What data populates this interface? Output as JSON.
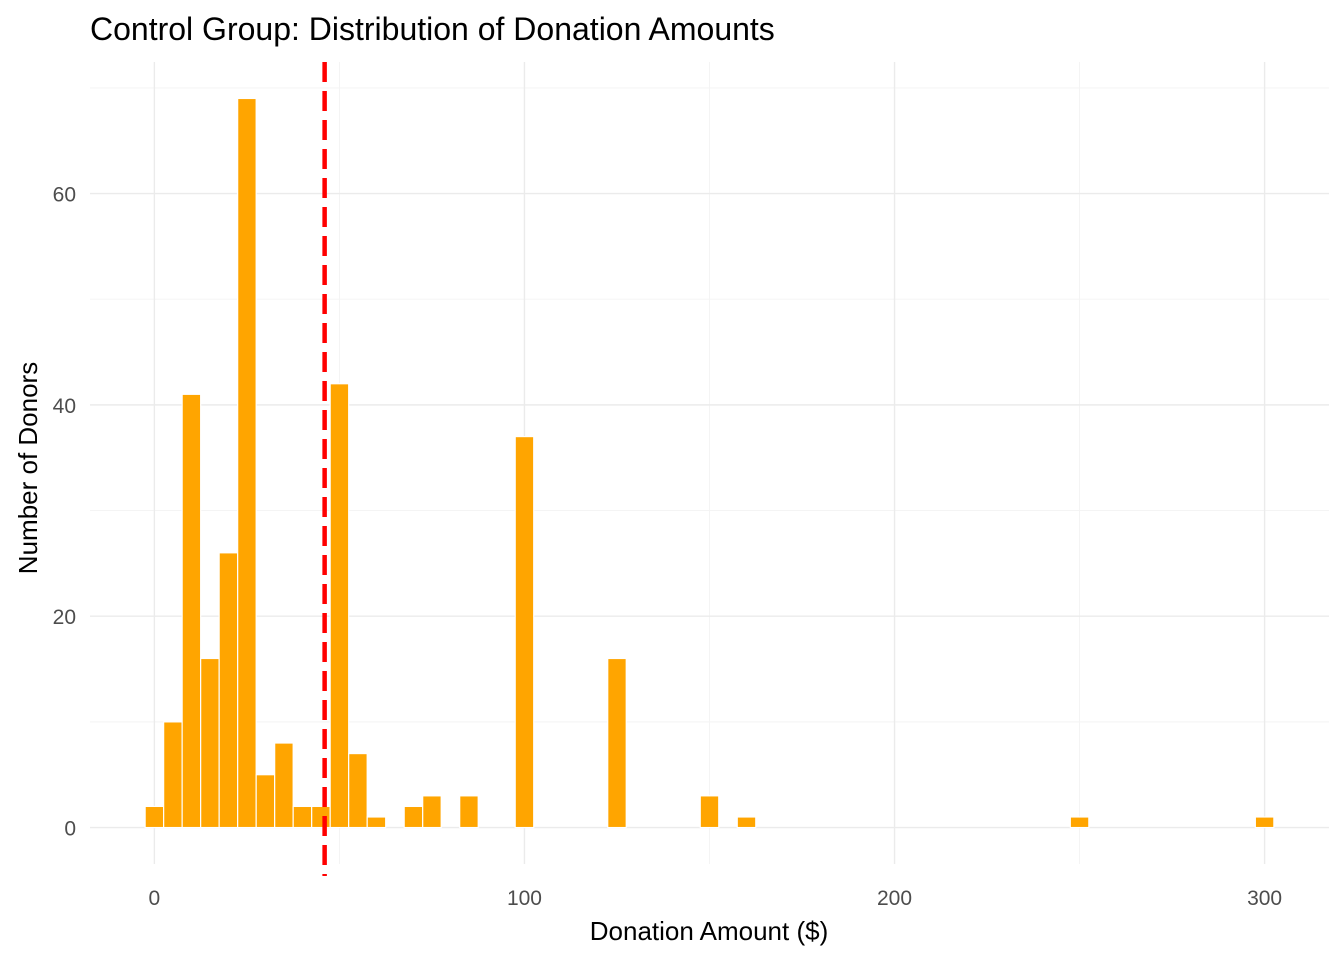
{
  "chart_data": {
    "type": "bar",
    "title": "Control Group: Distribution of Donation Amounts",
    "xlabel": "Donation Amount ($)",
    "ylabel": "Number of Donors",
    "bin_width": 5,
    "bins": [
      {
        "x": 0,
        "count": 2
      },
      {
        "x": 5,
        "count": 10
      },
      {
        "x": 10,
        "count": 41
      },
      {
        "x": 15,
        "count": 16
      },
      {
        "x": 20,
        "count": 26
      },
      {
        "x": 25,
        "count": 69
      },
      {
        "x": 30,
        "count": 5
      },
      {
        "x": 35,
        "count": 8
      },
      {
        "x": 40,
        "count": 2
      },
      {
        "x": 45,
        "count": 2
      },
      {
        "x": 50,
        "count": 42
      },
      {
        "x": 55,
        "count": 7
      },
      {
        "x": 60,
        "count": 1
      },
      {
        "x": 70,
        "count": 2
      },
      {
        "x": 75,
        "count": 3
      },
      {
        "x": 85,
        "count": 3
      },
      {
        "x": 100,
        "count": 37
      },
      {
        "x": 125,
        "count": 16
      },
      {
        "x": 150,
        "count": 3
      },
      {
        "x": 160,
        "count": 1
      },
      {
        "x": 250,
        "count": 1
      },
      {
        "x": 300,
        "count": 1
      }
    ],
    "x_ticks": [
      0,
      100,
      200,
      300
    ],
    "y_ticks": [
      0,
      20,
      40,
      60
    ],
    "xlim": [
      -17.4,
      317.4
    ],
    "ylim": [
      -3.45,
      72.45
    ],
    "reference_line": {
      "x": 46,
      "color": "#ff0000",
      "style": "dashed"
    },
    "bar_color": "#ffa500",
    "grid": true,
    "theme": "minimal"
  }
}
